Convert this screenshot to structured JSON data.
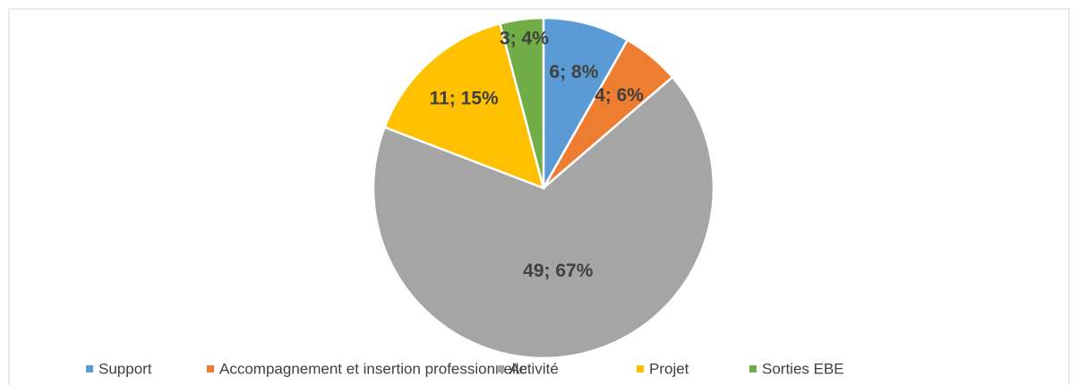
{
  "chart_data": {
    "type": "pie",
    "categories": [
      "Support",
      "Accompagnement et insertion professionnelle",
      "Activité",
      "Projet",
      "Sorties EBE"
    ],
    "values": [
      6,
      4,
      49,
      11,
      3
    ],
    "value_labels": [
      "6; 8%",
      "4; 6%",
      "49; 67%",
      "11; 15%",
      "3; 4%"
    ],
    "colors": [
      "#5b9bd5",
      "#ed7d31",
      "#a5a5a5",
      "#ffc000",
      "#70ad47"
    ],
    "legend": "bottom"
  }
}
